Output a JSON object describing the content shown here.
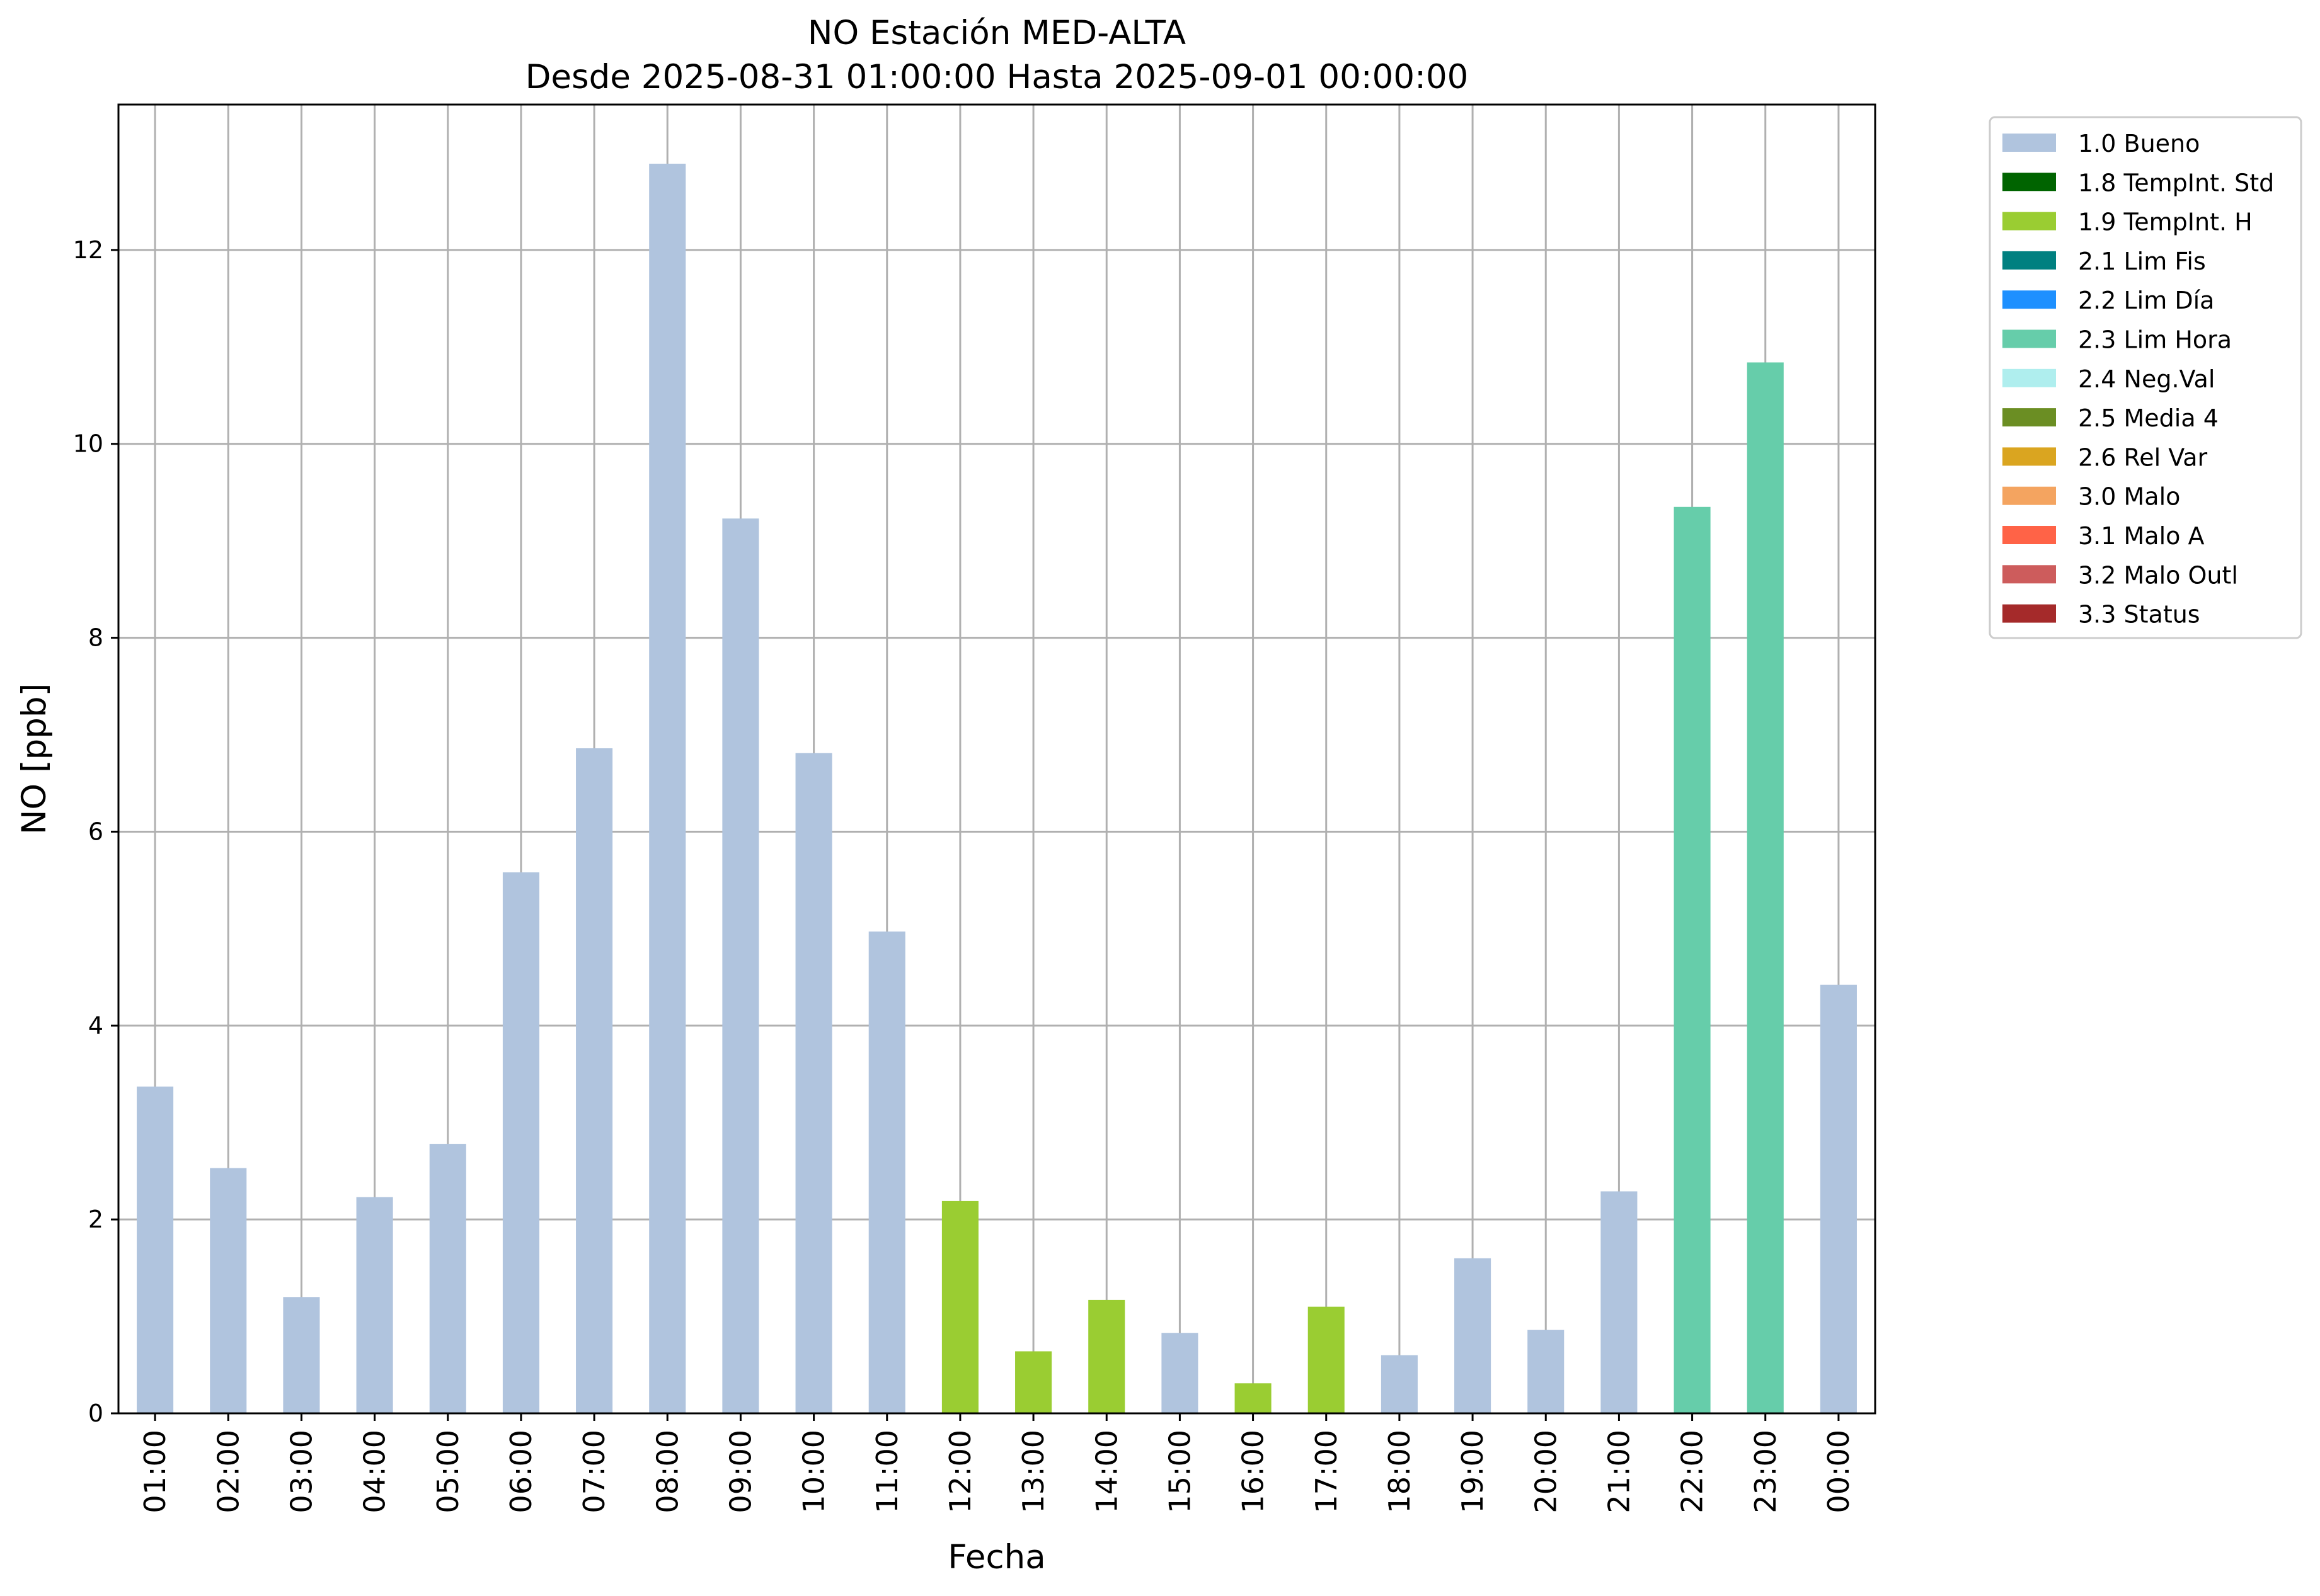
{
  "chart_data": {
    "type": "bar",
    "title": "NO Estación MED-ALTA",
    "subtitle": "Desde 2025-08-31 01:00:00 Hasta 2025-09-01 00:00:00",
    "xlabel": "Fecha",
    "ylabel": "NO [ppb]",
    "ylim": [
      0,
      13.5
    ],
    "yticks": [
      0,
      2,
      4,
      6,
      8,
      10,
      12
    ],
    "grid": true,
    "legend_position": "outside-right-top",
    "categories": [
      "01:00",
      "02:00",
      "03:00",
      "04:00",
      "05:00",
      "06:00",
      "07:00",
      "08:00",
      "09:00",
      "10:00",
      "11:00",
      "12:00",
      "13:00",
      "14:00",
      "15:00",
      "16:00",
      "17:00",
      "18:00",
      "19:00",
      "20:00",
      "21:00",
      "22:00",
      "23:00",
      "00:00"
    ],
    "values": [
      3.37,
      2.53,
      1.2,
      2.23,
      2.78,
      5.58,
      6.86,
      12.89,
      9.23,
      6.81,
      4.97,
      2.19,
      0.64,
      1.17,
      0.83,
      0.31,
      1.1,
      0.6,
      1.6,
      0.86,
      2.29,
      9.35,
      10.84,
      4.42
    ],
    "flags": [
      "1.0 Bueno",
      "1.0 Bueno",
      "1.0 Bueno",
      "1.0 Bueno",
      "1.0 Bueno",
      "1.0 Bueno",
      "1.0 Bueno",
      "1.0 Bueno",
      "1.0 Bueno",
      "1.0 Bueno",
      "1.0 Bueno",
      "1.9 TempInt. H",
      "1.9 TempInt. H",
      "1.9 TempInt. H",
      "1.0 Bueno",
      "1.9 TempInt. H",
      "1.9 TempInt. H",
      "1.0 Bueno",
      "1.0 Bueno",
      "1.0 Bueno",
      "1.0 Bueno",
      "2.3 Lim Hora",
      "2.3 Lim Hora",
      "1.0 Bueno"
    ],
    "legend": [
      {
        "label": "1.0 Bueno",
        "color": "#b0c4de"
      },
      {
        "label": "1.8 TempInt. Std",
        "color": "#006400"
      },
      {
        "label": "1.9 TempInt. H",
        "color": "#9acd32"
      },
      {
        "label": "2.1 Lim Fis",
        "color": "#008080"
      },
      {
        "label": "2.2 Lim Día",
        "color": "#1e90ff"
      },
      {
        "label": "2.3 Lim Hora",
        "color": "#66cdaa"
      },
      {
        "label": "2.4 Neg.Val",
        "color": "#afeeee"
      },
      {
        "label": "2.5 Media 4",
        "color": "#6b8e23"
      },
      {
        "label": "2.6 Rel Var",
        "color": "#daa520"
      },
      {
        "label": "3.0 Malo",
        "color": "#f4a460"
      },
      {
        "label": "3.1 Malo A",
        "color": "#ff6347"
      },
      {
        "label": "3.2 Malo Outl",
        "color": "#cd5c5c"
      },
      {
        "label": "3.3 Status",
        "color": "#a52a2a"
      }
    ]
  }
}
